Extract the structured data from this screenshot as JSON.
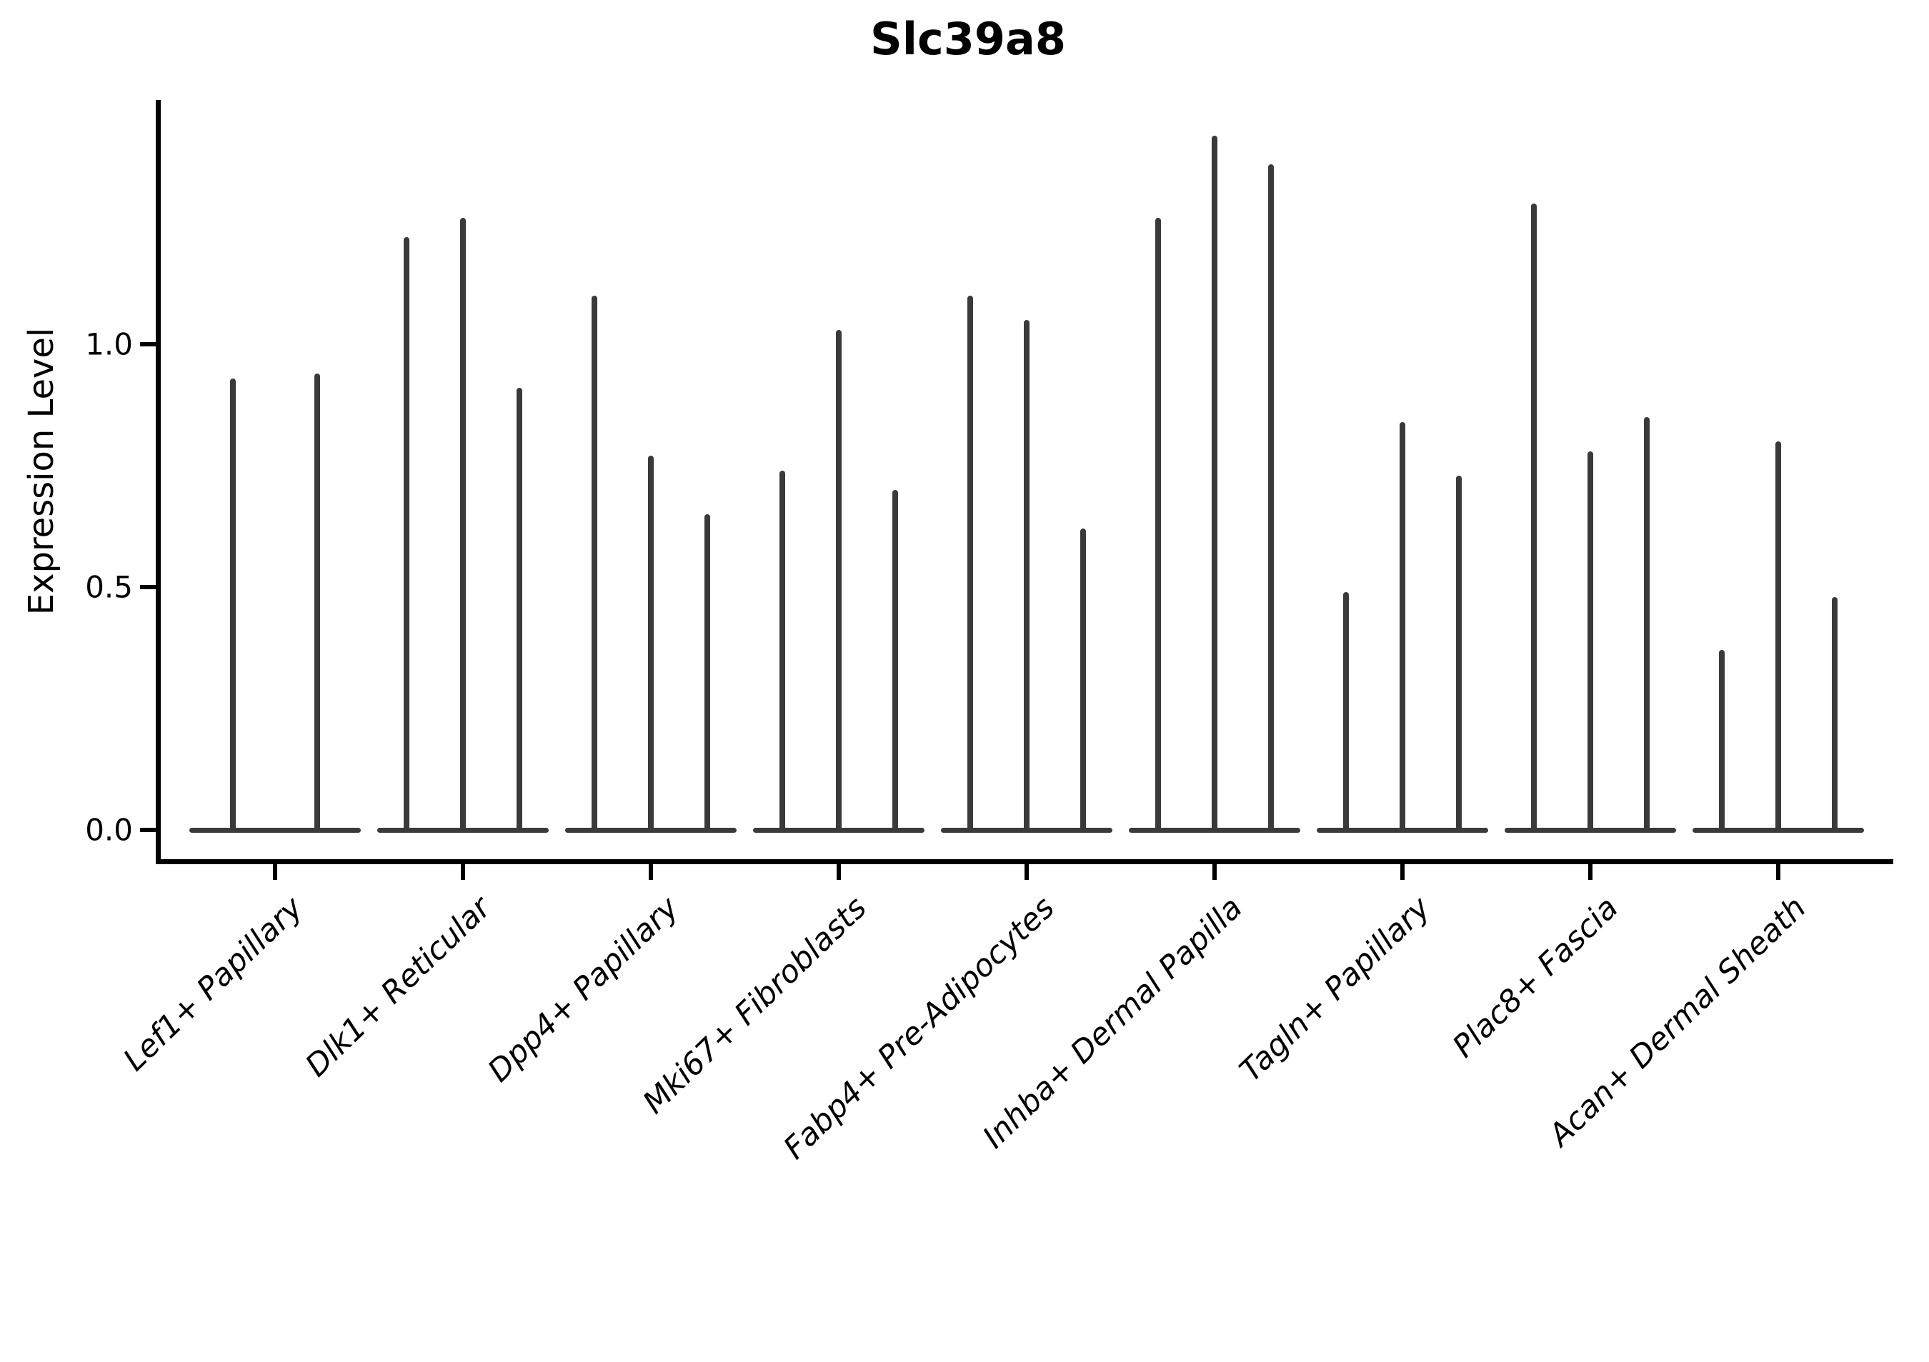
{
  "title": "Slc39a8",
  "axes": {
    "ylabel": "Expression Level",
    "ytick_labels": [
      "0.0",
      "0.5",
      "1.0"
    ]
  },
  "chart_data": {
    "type": "violin",
    "title": "Slc39a8",
    "xlabel": "",
    "ylabel": "Expression Level",
    "ylim": [
      -0.07,
      1.5
    ],
    "yticks": [
      0.0,
      0.5,
      1.0
    ],
    "grid": false,
    "legend": "none",
    "description": "Grouped needle-thin violins; density concentrated at 0 with thin spike to max expression",
    "categories": [
      "Lef1+ Papillary",
      "Dlk1+ Reticular",
      "Dpp4+ Papillary",
      "Mki67+ Fibroblasts",
      "Fabp4+ Pre-Adipocytes",
      "Inhba+ Dermal Papilla",
      "Tagln+ Papillary",
      "Plac8+ Fascia",
      "Acan+ Dermal Sheath"
    ],
    "violin_max_values": [
      [
        0.93,
        0.94
      ],
      [
        1.22,
        1.26,
        0.91
      ],
      [
        1.1,
        0.77,
        0.65
      ],
      [
        0.74,
        1.03,
        0.7
      ],
      [
        1.1,
        1.05,
        0.62
      ],
      [
        1.26,
        1.43,
        1.37
      ],
      [
        0.49,
        0.84,
        0.73
      ],
      [
        1.29,
        0.78,
        0.85
      ],
      [
        0.37,
        0.8,
        0.48
      ]
    ],
    "colors": {
      "violin": "#3a3a3a",
      "axis": "#000000",
      "text": "#000000",
      "background": "#ffffff"
    }
  }
}
